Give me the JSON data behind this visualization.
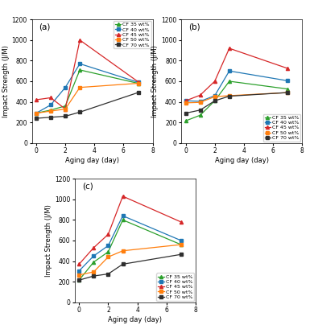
{
  "x": [
    0,
    1,
    2,
    3,
    7
  ],
  "series_labels": [
    "CF 35 wt%",
    "CF 40 wt%",
    "CF 45 wt%",
    "CF 50 wt%",
    "CF 70 wt%"
  ],
  "colors": [
    "#2ca02c",
    "#1f77b4",
    "#d62728",
    "#ff7f0e",
    "#2f2f2f"
  ],
  "subplot_labels": [
    "(a)",
    "(b)",
    "(c)"
  ],
  "a_data": [
    [
      290,
      320,
      360,
      710,
      580
    ],
    [
      290,
      370,
      540,
      770,
      590
    ],
    [
      420,
      440,
      330,
      1000,
      595
    ],
    [
      290,
      310,
      330,
      540,
      580
    ],
    [
      240,
      250,
      260,
      300,
      490
    ]
  ],
  "b_data": [
    [
      215,
      270,
      410,
      600,
      525
    ],
    [
      410,
      405,
      460,
      700,
      605
    ],
    [
      410,
      465,
      600,
      920,
      725
    ],
    [
      390,
      395,
      450,
      460,
      490
    ],
    [
      290,
      320,
      410,
      455,
      490
    ]
  ],
  "c_data": [
    [
      215,
      390,
      490,
      800,
      560
    ],
    [
      305,
      450,
      550,
      840,
      600
    ],
    [
      370,
      530,
      660,
      1030,
      780
    ],
    [
      265,
      295,
      440,
      500,
      560
    ],
    [
      215,
      255,
      275,
      370,
      465
    ]
  ],
  "ylabel": "Impact Strength (J/M)",
  "xlabel": "Aging day (day)",
  "ylim": [
    0,
    1200
  ],
  "xlim": [
    -0.3,
    8
  ],
  "yticks": [
    0,
    200,
    400,
    600,
    800,
    1000,
    1200
  ],
  "xticks": [
    0,
    2,
    4,
    6,
    8
  ],
  "legend_fontsize": 4.5,
  "axis_label_fontsize": 6,
  "tick_fontsize": 5.5,
  "subplot_label_fontsize": 7.5,
  "linewidth": 0.9,
  "markersize": 3
}
